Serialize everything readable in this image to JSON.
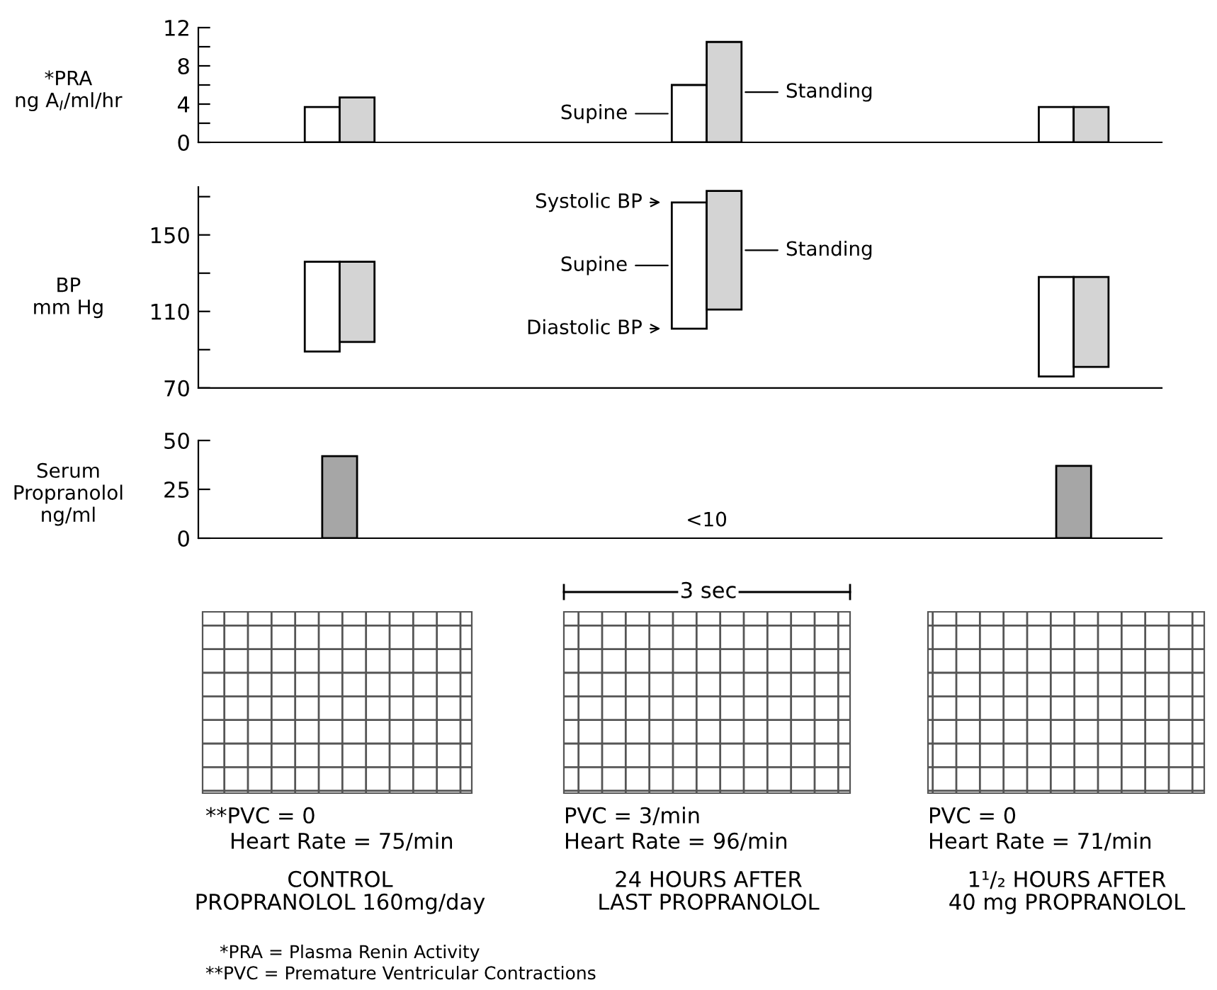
{
  "chart_data": [
    {
      "type": "bar",
      "ylabel": "*PRA\nng A$_{I}$/ml/hr",
      "categories": [
        null,
        null,
        null
      ],
      "ylim": [
        0,
        12
      ],
      "yticks": [
        0,
        {
          "value": 2,
          "label": null
        },
        4,
        {
          "value": 6,
          "label": null
        },
        8,
        {
          "value": 10,
          "label": null
        },
        12
      ],
      "grid": false,
      "series": [
        {
          "name": "Supine",
          "color": "#ffffff",
          "values": [
            3.7,
            6.0,
            3.7
          ]
        },
        {
          "name": "Standing",
          "color": "#d4d4d4",
          "values": [
            4.7,
            10.5,
            3.7
          ]
        }
      ]
    },
    {
      "type": "bar",
      "ylabel": "BP\nmm Hg",
      "categories": [
        null,
        null,
        null
      ],
      "ylim": [
        70,
        175
      ],
      "yticks": [
        70,
        {
          "value": 90,
          "label": null
        },
        110,
        {
          "value": 130,
          "label": null
        },
        150,
        {
          "value": 170,
          "label": null
        }
      ],
      "grid": false,
      "series": [
        {
          "name": "Supine",
          "color": "#ffffff",
          "base": [
            89,
            101,
            76
          ],
          "values": [
            47,
            66,
            52
          ]
        },
        {
          "name": "Standing",
          "color": "#d4d4d4",
          "base": [
            94,
            111,
            81
          ],
          "values": [
            42,
            62,
            47
          ]
        }
      ],
      "annotations": [
        "Systolic BP",
        "Diastolic BP"
      ]
    },
    {
      "type": "bar",
      "ylabel": "Serum\nPropranolol\nng/ml",
      "categories": [
        null,
        null,
        null
      ],
      "ylim": [
        0,
        50
      ],
      "yticks": [
        0,
        25,
        50
      ],
      "grid": false,
      "series": [
        {
          "color": "#a6a6a6",
          "values": [
            42,
            null,
            37
          ]
        }
      ],
      "annotations": [
        "<10"
      ]
    },
    {
      "type": "other",
      "annotations": [
        "3 sec",
        "**PVC = 0",
        "Heart Rate = 75/min",
        "CONTROL",
        "PROPRANOLOL 160mg/day",
        "PVC = 3/min",
        "Heart Rate = 96/min",
        "24 HOURS AFTER",
        "LAST PROPRANOLOL",
        "PVC = 0",
        "Heart Rate = 71/min",
        "1¹/₂ HOURS AFTER",
        "40 mg PROPRANOLOL",
        "*PRA = Plasma Renin Activity",
        "**PVC = Premature Ventricular Contractions"
      ]
    }
  ]
}
